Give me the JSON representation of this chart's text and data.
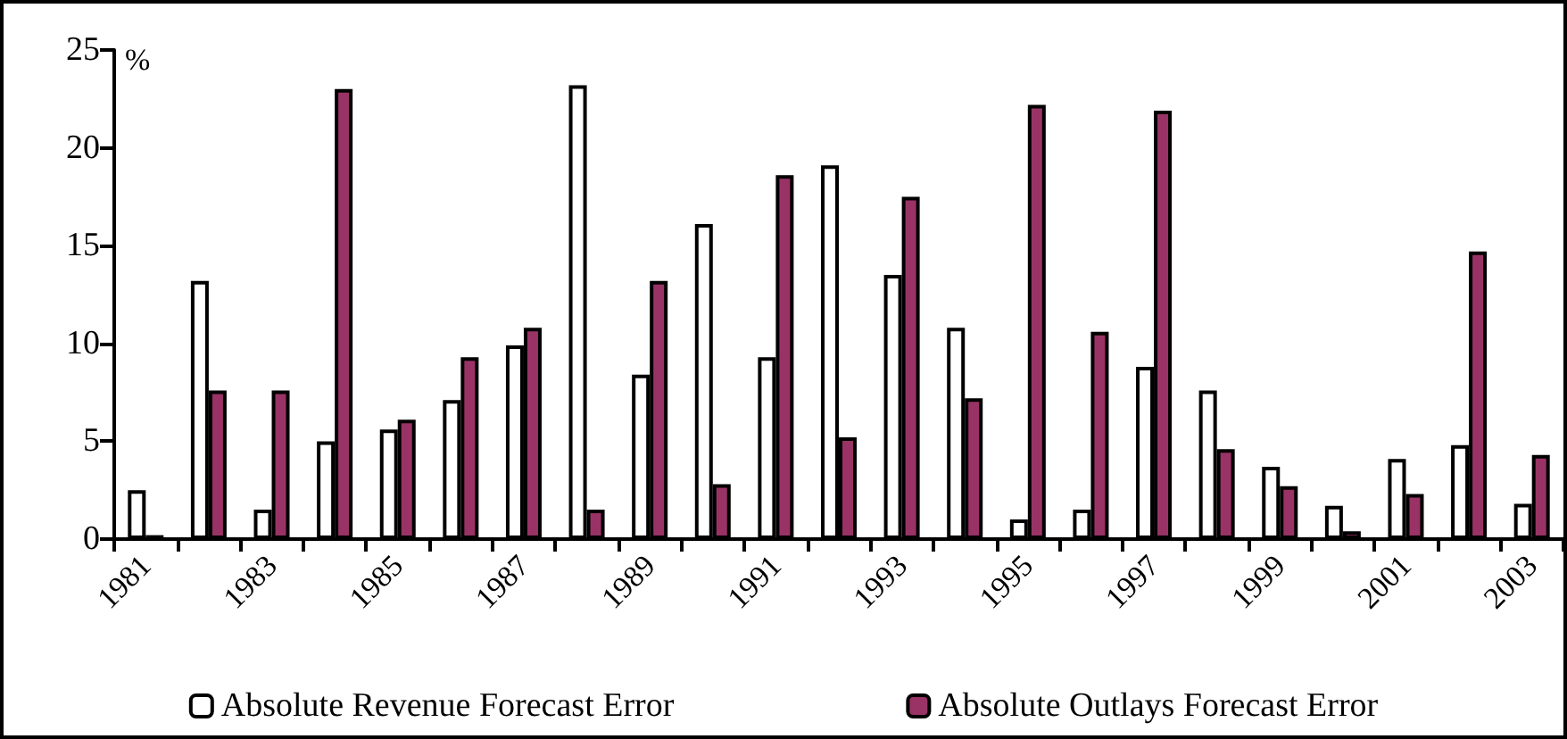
{
  "chart_data": {
    "type": "bar",
    "ylabel": "%",
    "categories": [
      "1981",
      null,
      "1983",
      null,
      "1985",
      null,
      "1987",
      null,
      "1989",
      null,
      "1991",
      null,
      "1993",
      null,
      "1995",
      null,
      "1997",
      null,
      "1999",
      null,
      "2001",
      null,
      "2003"
    ],
    "series": [
      {
        "name": "Absolute Revenue Forecast Error",
        "color": "#ffffff",
        "values": [
          2.5,
          13.2,
          1.5,
          5.0,
          5.6,
          7.1,
          9.9,
          23.2,
          8.4,
          16.1,
          9.3,
          19.1,
          13.5,
          10.8,
          1.0,
          1.5,
          8.8,
          7.6,
          3.7,
          1.7,
          4.1,
          4.8,
          1.8
        ]
      },
      {
        "name": "Absolute Outlays Forecast Error",
        "color": "#993366",
        "values": [
          0.2,
          7.6,
          7.6,
          23.0,
          6.1,
          9.3,
          10.8,
          1.5,
          13.2,
          2.8,
          18.6,
          5.2,
          17.5,
          7.2,
          22.2,
          10.6,
          21.9,
          4.6,
          2.7,
          0.4,
          2.3,
          14.7,
          4.3
        ]
      }
    ],
    "ylim": [
      0,
      25
    ],
    "yticks": [
      0,
      5,
      10,
      15,
      20,
      25
    ],
    "grid": false,
    "legend": "bottom"
  }
}
